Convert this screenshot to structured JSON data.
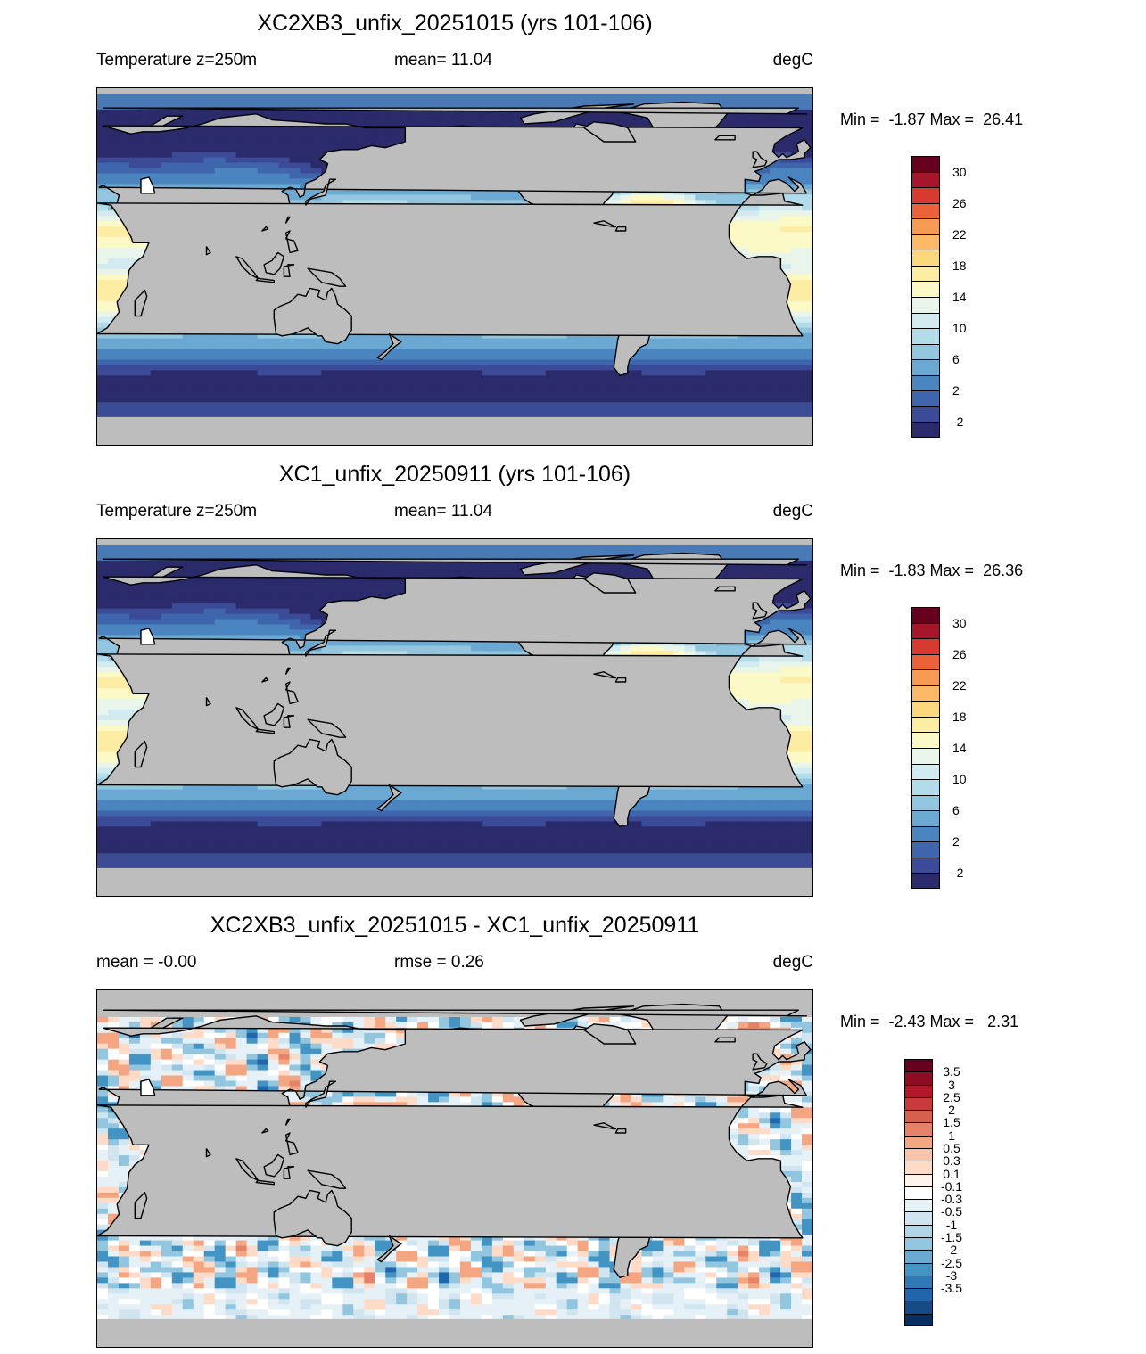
{
  "panels": [
    {
      "title": "XC2XB3_unfix_20251015 (yrs 101-106)",
      "left": "Temperature z=250m",
      "middle": "mean=  11.04",
      "right": "degC",
      "minmax": "Min =  -1.87 Max =  26.41",
      "colorbar": {
        "labels": [
          "30",
          "26",
          "22",
          "18",
          "14",
          "10",
          "6",
          "2",
          "-2"
        ],
        "colors": [
          "#67001f",
          "#a5162a",
          "#d73a2f",
          "#ec6238",
          "#f79a53",
          "#fbb866",
          "#fdd77c",
          "#fdeca3",
          "#fbf9c6",
          "#e9f5eb",
          "#d2ebf1",
          "#b3dcea",
          "#92c5de",
          "#6ba8d2",
          "#4b85c0",
          "#3f66ad",
          "#3c4b97",
          "#2b2a6b"
        ]
      },
      "field": "temperature"
    },
    {
      "title": "XC1_unfix_20250911 (yrs 101-106)",
      "left": "Temperature z=250m",
      "middle": "mean=  11.04",
      "right": "degC",
      "minmax": "Min =  -1.83 Max =  26.36",
      "colorbar": {
        "labels": [
          "30",
          "26",
          "22",
          "18",
          "14",
          "10",
          "6",
          "2",
          "-2"
        ],
        "colors": [
          "#67001f",
          "#a5162a",
          "#d73a2f",
          "#ec6238",
          "#f79a53",
          "#fbb866",
          "#fdd77c",
          "#fdeca3",
          "#fbf9c6",
          "#e9f5eb",
          "#d2ebf1",
          "#b3dcea",
          "#92c5de",
          "#6ba8d2",
          "#4b85c0",
          "#3f66ad",
          "#3c4b97",
          "#2b2a6b"
        ]
      },
      "field": "temperature"
    },
    {
      "title": "XC2XB3_unfix_20251015 - XC1_unfix_20250911",
      "left": "mean =  -0.00",
      "middle": "rmse =   0.26",
      "right": "degC",
      "minmax": "Min =  -2.43 Max =   2.31",
      "colorbar": {
        "labels": [
          "3.5",
          "3",
          "2.5",
          "2",
          "1.5",
          "1",
          "0.5",
          "0.3",
          "0.1",
          "-0.1",
          "-0.3",
          "-0.5",
          "-1",
          "-1.5",
          "-2",
          "-2.5",
          "-3",
          "-3.5"
        ],
        "colors": [
          "#67001f",
          "#8e0d25",
          "#b2182b",
          "#c93a3c",
          "#d6604d",
          "#e58267",
          "#f4a582",
          "#f8c4aa",
          "#fddbc7",
          "#fff3ec",
          "#ffffff",
          "#e6f1f7",
          "#d1e5f0",
          "#b0d5e7",
          "#92c5de",
          "#6aa9d0",
          "#4393c3",
          "#3079b5",
          "#2166ac",
          "#144b86",
          "#053061"
        ]
      },
      "field": "difference"
    }
  ],
  "colors": {
    "land": "#bdbdbd",
    "coast": "#000000",
    "cold_shelf": "#4a7ab6",
    "polar": "#3b4b94"
  }
}
